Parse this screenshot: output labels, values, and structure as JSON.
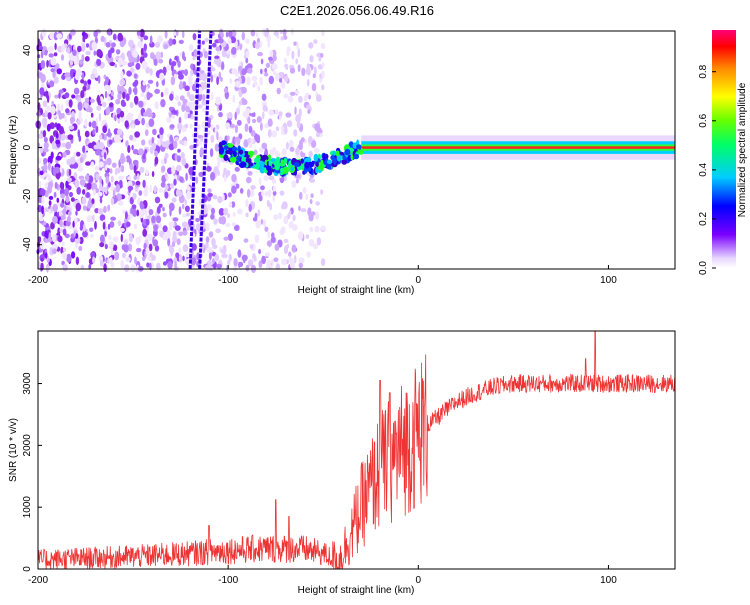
{
  "figure_title": "C2E1.2026.056.06.49.R16",
  "chart_data": [
    {
      "type": "heatmap",
      "title": "C2E1.2026.056.06.49.R16",
      "xlabel": "Height of straight line (km)",
      "ylabel": "Frequency (Hz)",
      "xlim": [
        -200,
        135
      ],
      "ylim": [
        -50,
        48
      ],
      "x_ticks": [
        -200,
        -100,
        0,
        100
      ],
      "y_ticks": [
        -40,
        -20,
        0,
        20,
        40
      ],
      "colorbar": {
        "label": "Normalized spectral amplitude",
        "range": [
          0,
          0.97
        ],
        "ticks": [
          0.0,
          0.2,
          0.4,
          0.6,
          0.8
        ]
      },
      "features": {
        "noise_region_km": [
          -200,
          -50
        ],
        "diagonal_streaks": [
          {
            "from": [
              -120,
              -50
            ],
            "to": [
              -115,
              48
            ]
          },
          {
            "from": [
              -115,
              -50
            ],
            "to": [
              -109,
              48
            ]
          }
        ],
        "carrier_line": {
          "start_km": -105,
          "end_km": 135,
          "frequency_hz": 0,
          "steady_from_km": -30
        }
      }
    },
    {
      "type": "line",
      "xlabel": "Height of straight line (km)",
      "ylabel": "SNR (10 * v/v)",
      "xlim": [
        -200,
        135
      ],
      "ylim": [
        0,
        3850
      ],
      "x_ticks": [
        -200,
        -100,
        0,
        100
      ],
      "y_ticks": [
        0,
        1000,
        2000,
        3000
      ],
      "series": [
        {
          "name": "SNR",
          "color": "#ee3333",
          "envelope": {
            "x": [
              -200,
              -150,
              -120,
              -100,
              -80,
              -60,
              -50,
              -42,
              -35,
              -30,
              -25,
              -20,
              -10,
              0,
              10,
              20,
              30,
              40,
              50,
              60,
              80,
              100,
              120,
              135
            ],
            "y": [
              150,
              200,
              250,
              300,
              330,
              320,
              250,
              120,
              600,
              1000,
              1300,
              1600,
              1900,
              2200,
              2450,
              2700,
              2850,
              2950,
              3000,
              3000,
              3000,
              3000,
              3000,
              3000
            ]
          },
          "spikes": [
            {
              "x": -110,
              "y": 700
            },
            {
              "x": -75,
              "y": 1120
            },
            {
              "x": -68,
              "y": 850
            },
            {
              "x": -20,
              "y": 3050
            },
            {
              "x": -15,
              "y": 2850
            },
            {
              "x": 88,
              "y": 3400
            },
            {
              "x": 93,
              "y": 3850
            }
          ]
        }
      ]
    }
  ]
}
